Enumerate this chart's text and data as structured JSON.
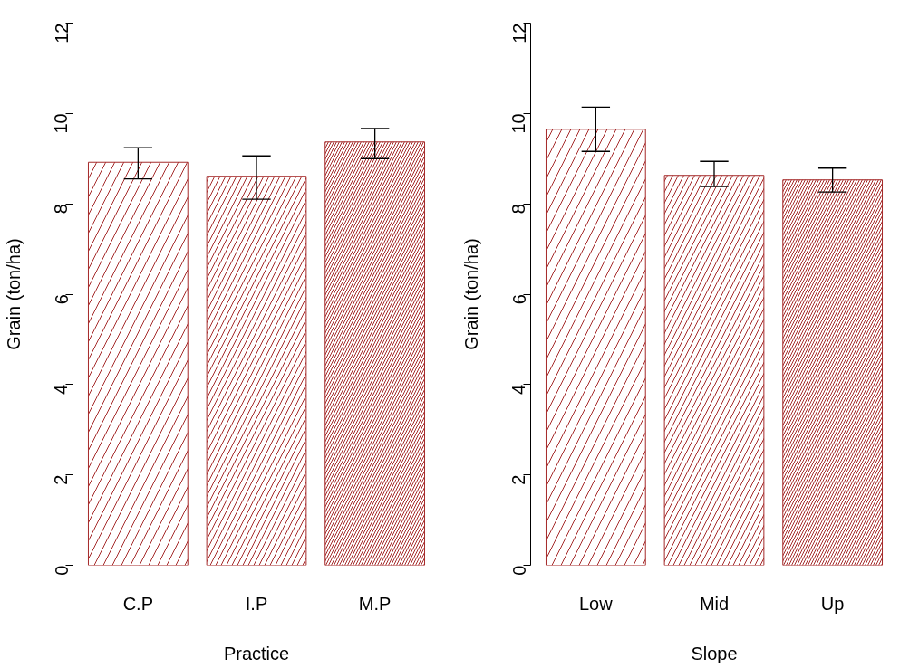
{
  "chart_data": [
    {
      "type": "bar",
      "xlabel": "Practice",
      "ylabel": "Grain (ton/ha)",
      "categories": [
        "C.P",
        "I.P",
        "M.P"
      ],
      "values": [
        8.92,
        8.61,
        9.37
      ],
      "colors": [
        "#a52a2a",
        "#a52a2a",
        "#a52a2a"
      ],
      "errors": [
        [
          8.55,
          9.24
        ],
        [
          8.1,
          9.06
        ],
        [
          9.0,
          9.67
        ]
      ],
      "ylim": [
        0,
        12
      ],
      "yticks": [
        0,
        2,
        4,
        6,
        8,
        10,
        12
      ],
      "grid": false
    },
    {
      "type": "bar",
      "xlabel": "Slope",
      "ylabel": "Grain (ton/ha)",
      "categories": [
        "Low",
        "Mid",
        "Up"
      ],
      "values": [
        9.65,
        8.63,
        8.53
      ],
      "colors": [
        "#a52a2a",
        "#a52a2a",
        "#a52a2a"
      ],
      "errors": [
        [
          9.16,
          10.14
        ],
        [
          8.38,
          8.94
        ],
        [
          8.26,
          8.79
        ]
      ],
      "ylim": [
        0,
        12
      ],
      "yticks": [
        0,
        2,
        4,
        6,
        8,
        10,
        12
      ],
      "grid": false
    }
  ]
}
